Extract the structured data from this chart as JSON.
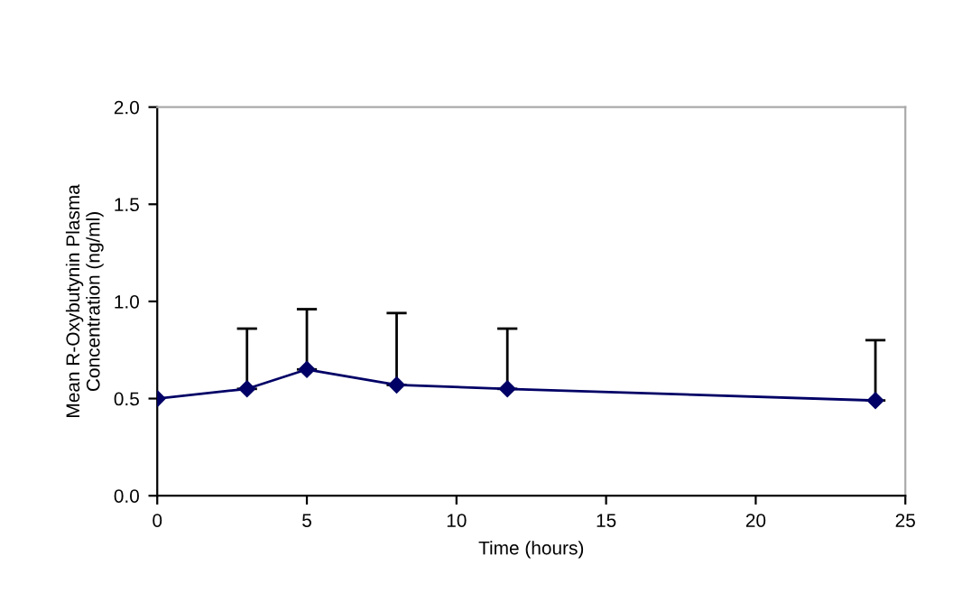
{
  "chart_data": {
    "type": "line",
    "xlabel": "Time (hours)",
    "ylabel": "Mean R-Oxybutynin Plasma\nConcentration (ng/ml)",
    "x": [
      0,
      3,
      5,
      8,
      11.7,
      24
    ],
    "series": [
      {
        "color": "#000066",
        "values": [
          0.5,
          0.55,
          0.65,
          0.57,
          0.55,
          0.49
        ],
        "errors": [
          null,
          [
            0.55,
            0.86
          ],
          [
            0.65,
            0.96
          ],
          [
            0.57,
            0.94
          ],
          [
            0.55,
            0.86
          ],
          [
            0.49,
            0.8
          ]
        ]
      }
    ],
    "xlim": [
      0,
      25
    ],
    "xticks": [
      0,
      5,
      10,
      15,
      20,
      25
    ],
    "ylim": [
      0,
      2
    ],
    "yticks": [
      {
        "value": 0,
        "label": "0.0"
      },
      {
        "value": 0.5,
        "label": "0.5"
      },
      {
        "value": 1,
        "label": "1.0"
      },
      {
        "value": 1.5,
        "label": "1.5"
      },
      {
        "value": 2,
        "label": "2.0"
      }
    ],
    "marker": "diamond",
    "line_style": "solid",
    "grid": false,
    "legend": false
  }
}
